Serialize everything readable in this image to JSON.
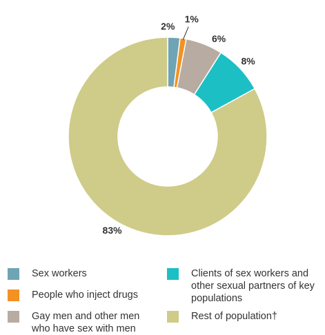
{
  "chart_data": {
    "type": "donut",
    "title": "",
    "categories": [
      "Sex workers",
      "People who inject drugs",
      "Gay men and other men who have sex with men",
      "Clients of sex workers and other sexual partners of key populations",
      "Rest of population†"
    ],
    "values": [
      2,
      1,
      6,
      8,
      83
    ],
    "value_labels": [
      "2%",
      "1%",
      "6%",
      "8%",
      "83%"
    ],
    "colors": [
      "#6fa4b4",
      "#f39223",
      "#b8aba1",
      "#1cbfc4",
      "#cfcb89"
    ],
    "legend_position": "bottom"
  },
  "legend": {
    "items": [
      {
        "label": "Sex workers",
        "color": "#6fa4b4"
      },
      {
        "label": "People who inject drugs",
        "color": "#f39223"
      },
      {
        "label": "Gay men and other men who have sex with men",
        "color": "#b8aba1"
      },
      {
        "label": "Clients of sex workers and other sexual partners of key populations",
        "color": "#1cbfc4"
      },
      {
        "label": "Rest of population†",
        "color": "#cfcb89"
      }
    ]
  }
}
